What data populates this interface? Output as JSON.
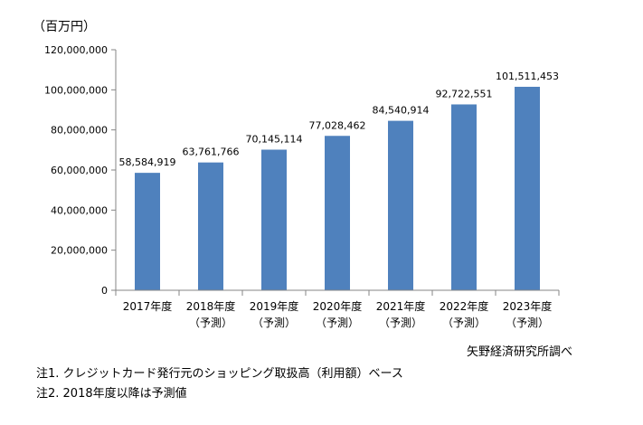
{
  "chart_data": {
    "type": "bar",
    "unit_label": "（百万円）",
    "categories": [
      [
        "2017年度"
      ],
      [
        "2018年度",
        "（予測）"
      ],
      [
        "2019年度",
        "（予測）"
      ],
      [
        "2020年度",
        "（予測）"
      ],
      [
        "2021年度",
        "（予測）"
      ],
      [
        "2022年度",
        "（予測）"
      ],
      [
        "2023年度",
        "（予測）"
      ]
    ],
    "values": [
      58584919,
      63761766,
      70145114,
      77028462,
      84540914,
      92722551,
      101511453
    ],
    "data_labels": [
      "58,584,919",
      "63,761,766",
      "70,145,114",
      "77,028,462",
      "84,540,914",
      "92,722,551",
      "101,511,453"
    ],
    "y_ticks": [
      0,
      20000000,
      40000000,
      60000000,
      80000000,
      100000000,
      120000000
    ],
    "y_tick_labels": [
      "0",
      "20,000,000",
      "40,000,000",
      "60,000,000",
      "80,000,000",
      "100,000,000",
      "120,000,000"
    ],
    "ylim": [
      0,
      120000000
    ],
    "grid": false,
    "bar_color": "#4f81bd",
    "axis_color": "#868686"
  },
  "source": "矢野経済研究所調べ",
  "notes": [
    "注1. クレジットカード発行元のショッピング取扱高（利用額）ベース",
    "注2. 2018年度以降は予測値"
  ]
}
